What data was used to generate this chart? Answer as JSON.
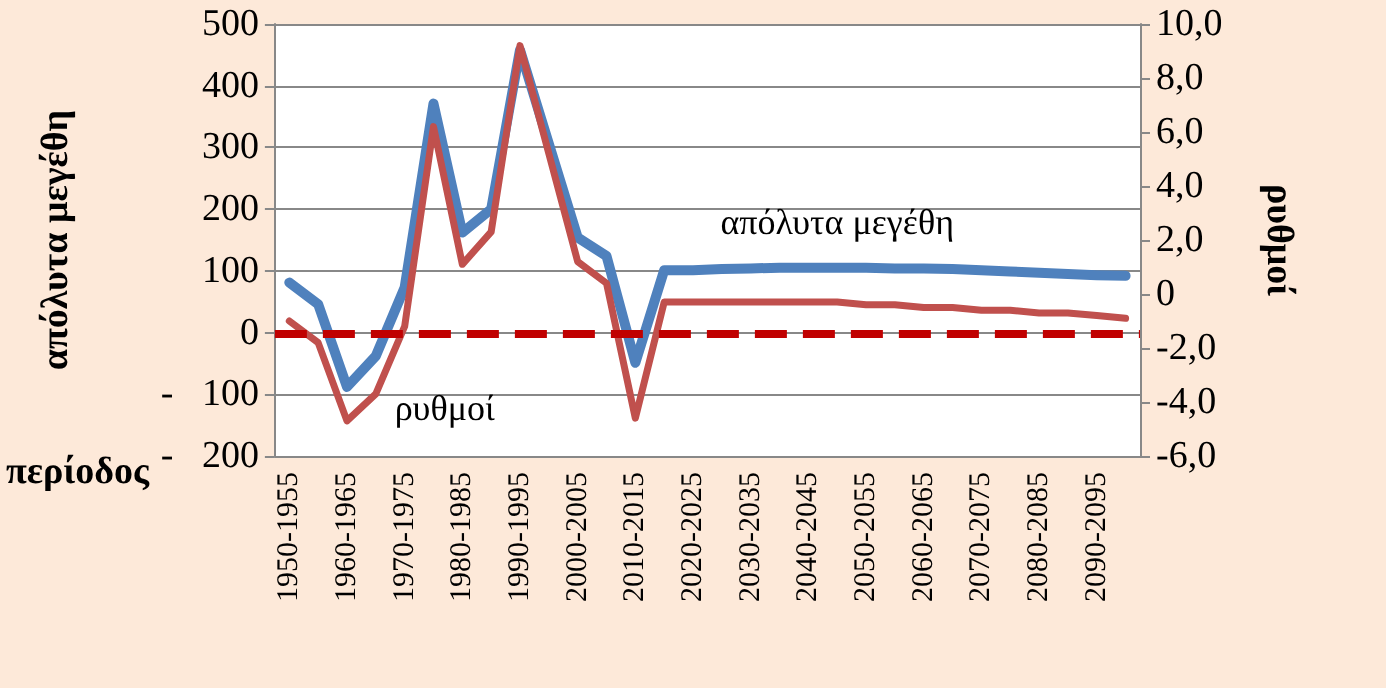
{
  "chart_data": {
    "type": "line",
    "xlabel": "περίοδος",
    "ylabel": "απόλυτα μεγέθη",
    "y2label": "ρυθμοί",
    "categories": [
      "1950-1955",
      null,
      "1960-1965",
      null,
      "1970-1975",
      null,
      "1980-1985",
      null,
      "1990-1995",
      null,
      "2000-2005",
      null,
      "2010-2015",
      null,
      "2020-2025",
      null,
      "2030-2035",
      null,
      "2040-2045",
      null,
      "2050-2055",
      null,
      "2060-2065",
      null,
      "2070-2075",
      null,
      "2080-2085",
      null,
      "2090-2095",
      null
    ],
    "series": [
      {
        "name": "απόλυτα μεγέθη",
        "color": "#4f81bd",
        "values": [
          81,
          46,
          -88,
          -38,
          73,
          371,
          162,
          200,
          458,
          306,
          154,
          124,
          -49,
          101,
          101,
          103,
          104,
          105,
          105,
          105,
          105,
          104,
          104,
          103,
          101,
          99,
          97,
          95,
          93,
          92
        ]
      },
      {
        "name": "ρυθμοί",
        "color": "#c0504d",
        "axis": "y2",
        "values": [
          -1.0,
          -1.8,
          -4.7,
          -3.7,
          -1.2,
          6.2,
          1.1,
          2.3,
          9.2,
          5.2,
          1.2,
          0.4,
          -4.6,
          -0.3,
          -0.3,
          -0.3,
          -0.3,
          -0.3,
          -0.3,
          -0.3,
          -0.4,
          -0.4,
          -0.5,
          -0.5,
          -0.6,
          -0.6,
          -0.7,
          -0.7,
          -0.8,
          -0.9
        ]
      }
    ],
    "ylim": [
      -200,
      500
    ],
    "yticks": [
      {
        "value": -200,
        "label": "-   200"
      },
      {
        "value": -100,
        "label": "-   100"
      },
      0,
      100,
      200,
      300,
      400,
      500
    ],
    "y2lim": [
      -6,
      10
    ],
    "y2ticks": [
      {
        "value": -6,
        "label": "-6,0"
      },
      {
        "value": -4,
        "label": "-4,0"
      },
      {
        "value": -2,
        "label": "-2,0"
      },
      {
        "value": 0,
        "label": "0"
      },
      {
        "value": 2,
        "label": "2,0"
      },
      {
        "value": 4,
        "label": "4,0"
      },
      {
        "value": 6,
        "label": "6,0"
      },
      {
        "value": 8,
        "label": "8,0"
      },
      {
        "value": 10,
        "label": "10,0"
      }
    ],
    "ref_lines": [
      {
        "axis": "y",
        "value": 0,
        "color": "#c00000",
        "line_style": "dashed"
      }
    ],
    "grid": "y",
    "legend": false,
    "marker": "none",
    "line_style": "solid"
  }
}
